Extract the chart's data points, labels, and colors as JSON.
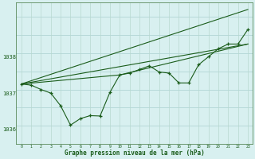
{
  "bg_color": "#d8f0f0",
  "line_color": "#1a5c1a",
  "grid_color_h": "#b8d8c8",
  "grid_color_v": "#c0dcd8",
  "xlabel": "Graphe pression niveau de la mer (hPa)",
  "xlim": [
    -0.5,
    23.5
  ],
  "ylim": [
    1035.6,
    1039.5
  ],
  "yticks": [
    1036,
    1037,
    1038
  ],
  "xticks": [
    0,
    1,
    2,
    3,
    4,
    5,
    6,
    7,
    8,
    9,
    10,
    11,
    12,
    13,
    14,
    15,
    16,
    17,
    18,
    19,
    20,
    21,
    22,
    23
  ],
  "line1_x": [
    0,
    1,
    2,
    3,
    4,
    5,
    6,
    7,
    8,
    9,
    10,
    11,
    12,
    13,
    14,
    15,
    16,
    17,
    18,
    19,
    20,
    21,
    22,
    23
  ],
  "line1_y": [
    1037.25,
    1037.22,
    1037.1,
    1037.0,
    1036.65,
    1036.12,
    1036.3,
    1036.38,
    1036.37,
    1037.02,
    1037.5,
    1037.55,
    1037.65,
    1037.75,
    1037.58,
    1037.55,
    1037.28,
    1037.28,
    1037.78,
    1038.0,
    1038.22,
    1038.35,
    1038.35,
    1038.75
  ],
  "line2_x": [
    0,
    23
  ],
  "line2_y": [
    1037.25,
    1039.3
  ],
  "line3_x": [
    0,
    23
  ],
  "line3_y": [
    1037.25,
    1038.35
  ],
  "line4_x": [
    0,
    10,
    23
  ],
  "line4_y": [
    1037.25,
    1037.5,
    1038.35
  ]
}
